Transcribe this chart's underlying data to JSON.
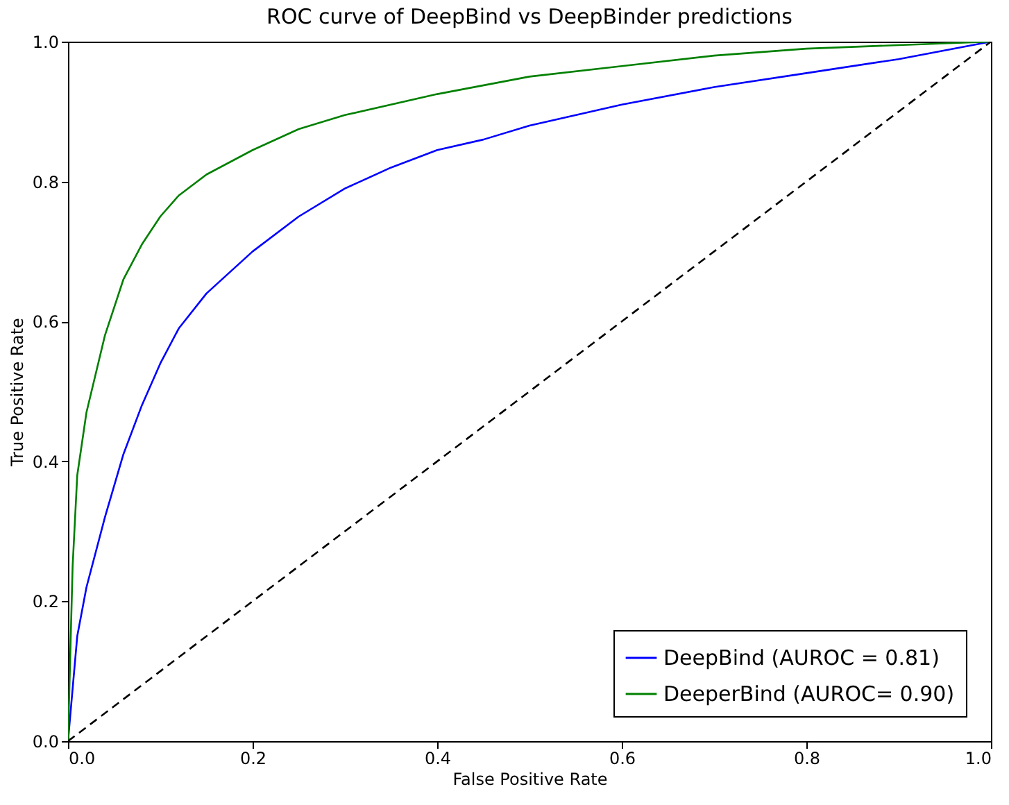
{
  "chart_data": {
    "type": "line",
    "title": "ROC curve of DeepBind vs DeepBinder predictions",
    "xlabel": "False Positive Rate",
    "ylabel": "True Positive Rate",
    "xlim": [
      0,
      1
    ],
    "ylim": [
      0,
      1
    ],
    "xticks": [
      {
        "value": 0,
        "label": "0.0"
      },
      {
        "value": 0.2,
        "label": "0.2"
      },
      {
        "value": 0.4,
        "label": "0.4"
      },
      {
        "value": 0.6,
        "label": "0.6"
      },
      {
        "value": 0.8,
        "label": "0.8"
      },
      {
        "value": 1,
        "label": "1.0"
      }
    ],
    "yticks": [
      {
        "value": 0,
        "label": "0.0"
      },
      {
        "value": 0.2,
        "label": "0.2"
      },
      {
        "value": 0.4,
        "label": "0.4"
      },
      {
        "value": 0.6,
        "label": "0.6"
      },
      {
        "value": 0.8,
        "label": "0.8"
      },
      {
        "value": 1,
        "label": "1.0"
      }
    ],
    "grid": false,
    "legend": "bottom right",
    "marker": "none",
    "series": [
      {
        "name": "DeepBind (AUROC = 0.81)",
        "color": "#0000ff",
        "line_style": "solid",
        "x": [
          0,
          0.01,
          0.02,
          0.04,
          0.06,
          0.08,
          0.1,
          0.12,
          0.15,
          0.2,
          0.25,
          0.3,
          0.35,
          0.4,
          0.45,
          0.5,
          0.6,
          0.7,
          0.8,
          0.9,
          1
        ],
        "values": [
          0,
          0.15,
          0.22,
          0.32,
          0.41,
          0.48,
          0.54,
          0.59,
          0.64,
          0.7,
          0.75,
          0.79,
          0.82,
          0.845,
          0.86,
          0.88,
          0.91,
          0.935,
          0.955,
          0.975,
          1
        ]
      },
      {
        "name": "DeeperBind (AUROC= 0.90)",
        "color": "#008000",
        "line_style": "solid",
        "x": [
          0,
          0.005,
          0.01,
          0.02,
          0.04,
          0.06,
          0.08,
          0.1,
          0.12,
          0.15,
          0.2,
          0.25,
          0.3,
          0.4,
          0.5,
          0.6,
          0.7,
          0.8,
          0.9,
          1
        ],
        "values": [
          0,
          0.25,
          0.38,
          0.47,
          0.58,
          0.66,
          0.71,
          0.75,
          0.78,
          0.81,
          0.845,
          0.875,
          0.895,
          0.925,
          0.95,
          0.965,
          0.98,
          0.99,
          0.995,
          1
        ]
      },
      {
        "color": "#000000",
        "line_style": "dashed",
        "x": [
          0,
          1
        ],
        "values": [
          0,
          1
        ]
      }
    ]
  }
}
